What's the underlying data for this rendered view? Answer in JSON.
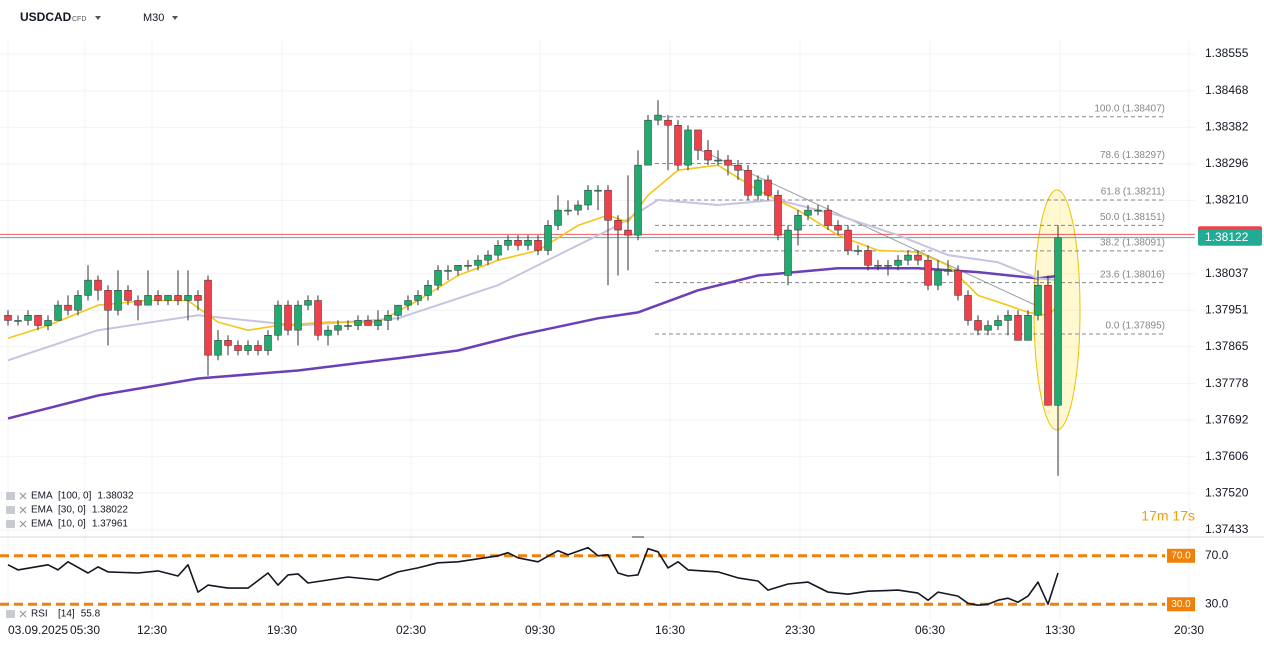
{
  "header": {
    "symbol": "USDCAD",
    "badge": "CFD",
    "timeframe": "M30"
  },
  "chart_data": [
    {
      "type": "candlestick",
      "up_color": "#22ab6e",
      "down_color": "#f0414b",
      "xlim": [
        -0.8,
        118.7
      ],
      "ylim": [
        1.37433,
        1.38555
      ],
      "yticks": [
        1.38555,
        1.38468,
        1.38382,
        1.38296,
        {
          "value": 1.3821,
          "label": "1.38210"
        },
        1.38037,
        1.37951,
        1.37865,
        1.37778,
        1.37692,
        1.37606,
        {
          "value": 1.3752,
          "label": "1.37520"
        },
        1.37433
      ],
      "grid": true,
      "open": [
        1.37939,
        1.37927,
        1.37927,
        1.37939,
        1.37915,
        1.37927,
        1.37963,
        1.37951,
        1.37986,
        1.38022,
        1.37998,
        1.37951,
        1.37998,
        1.37974,
        1.37963,
        1.37986,
        1.37974,
        1.37986,
        1.37974,
        1.37986,
        1.38022,
        1.37845,
        1.3788,
        1.37868,
        1.37856,
        1.37868,
        1.37856,
        1.37892,
        1.37963,
        1.37904,
        1.37963,
        1.37974,
        1.37892,
        1.37904,
        1.37915,
        1.37915,
        1.37927,
        1.37915,
        1.37927,
        1.37939,
        1.37963,
        1.37974,
        1.37986,
        1.3801,
        1.38045,
        1.38045,
        1.38057,
        1.38057,
        1.38069,
        1.38081,
        1.38104,
        1.38116,
        1.38104,
        1.38116,
        1.38092,
        1.38151,
        1.38187,
        1.38187,
        1.38199,
        1.38234,
        1.38234,
        1.38163,
        1.3814,
        1.38128,
        1.38293,
        1.38399,
        1.38399,
        1.38387,
        1.38293,
        1.38376,
        1.38328,
        1.38305,
        1.38305,
        1.38293,
        1.38281,
        1.38222,
        1.38258,
        1.38222,
        1.38033,
        1.3814,
        1.38175,
        1.38187,
        1.38187,
        1.38151,
        1.3814,
        1.38092,
        1.38092,
        1.38057,
        1.38057,
        1.38057,
        1.38069,
        1.38081,
        1.38069,
        1.3801,
        1.38045,
        1.38045,
        1.37986,
        1.37927,
        1.37904,
        1.37915,
        1.37927,
        1.37939,
        1.3788,
        1.37939,
        1.3801,
        1.37727
      ],
      "high": [
        1.37951,
        1.37939,
        1.37951,
        1.37939,
        1.37939,
        1.37974,
        1.37986,
        1.37998,
        1.38057,
        1.38033,
        1.3801,
        1.38045,
        1.3801,
        1.37986,
        1.38045,
        1.37998,
        1.37986,
        1.38045,
        1.38045,
        1.37998,
        1.38033,
        1.37904,
        1.37892,
        1.3788,
        1.3788,
        1.3788,
        1.37904,
        1.37974,
        1.37974,
        1.37974,
        1.37986,
        1.37986,
        1.37915,
        1.37927,
        1.37927,
        1.37939,
        1.37939,
        1.37951,
        1.37951,
        1.37963,
        1.37986,
        1.37998,
        1.38022,
        1.38057,
        1.38057,
        1.38057,
        1.38069,
        1.38081,
        1.38092,
        1.38116,
        1.38128,
        1.38128,
        1.38128,
        1.38128,
        1.38163,
        1.38222,
        1.3821,
        1.3821,
        1.38246,
        1.38246,
        1.38246,
        1.38175,
        1.38269,
        1.38328,
        1.38411,
        1.38446,
        1.38411,
        1.38399,
        1.38387,
        1.38376,
        1.38352,
        1.38328,
        1.38317,
        1.38305,
        1.38293,
        1.38269,
        1.38269,
        1.38234,
        1.38151,
        1.38187,
        1.38199,
        1.38199,
        1.38199,
        1.38163,
        1.38151,
        1.38104,
        1.38104,
        1.38069,
        1.38069,
        1.38081,
        1.38092,
        1.38092,
        1.38081,
        1.38069,
        1.38069,
        1.38057,
        1.37998,
        1.37939,
        1.37927,
        1.37939,
        1.37951,
        1.37951,
        1.37951,
        1.38045,
        1.38033,
        1.38151
      ],
      "low": [
        1.37915,
        1.37915,
        1.37915,
        1.37904,
        1.37904,
        1.37927,
        1.37939,
        1.37939,
        1.37974,
        1.37974,
        1.37868,
        1.37939,
        1.37963,
        1.37927,
        1.37963,
        1.37963,
        1.37963,
        1.37963,
        1.37927,
        1.37951,
        1.37797,
        1.37833,
        1.37845,
        1.37845,
        1.37845,
        1.37845,
        1.37845,
        1.3788,
        1.37892,
        1.37868,
        1.37951,
        1.3788,
        1.37868,
        1.37892,
        1.37904,
        1.37904,
        1.37915,
        1.37904,
        1.37904,
        1.37927,
        1.37951,
        1.37963,
        1.37974,
        1.37998,
        1.38022,
        1.38033,
        1.38045,
        1.38045,
        1.38057,
        1.38069,
        1.38092,
        1.38092,
        1.38092,
        1.38081,
        1.38081,
        1.3814,
        1.38175,
        1.38175,
        1.38187,
        1.38187,
        1.3801,
        1.38033,
        1.38045,
        1.38116,
        1.38293,
        1.38387,
        1.38281,
        1.38281,
        1.38281,
        1.38305,
        1.38293,
        1.38293,
        1.38269,
        1.38258,
        1.3821,
        1.3821,
        1.3821,
        1.38116,
        1.3801,
        1.38104,
        1.38163,
        1.38175,
        1.3814,
        1.38128,
        1.38081,
        1.38081,
        1.38045,
        1.38045,
        1.38033,
        1.38045,
        1.38057,
        1.38057,
        1.37998,
        1.37998,
        1.38033,
        1.37974,
        1.37915,
        1.37892,
        1.37892,
        1.37904,
        1.37892,
        1.3788,
        1.3788,
        1.37927,
        1.37727,
        1.37561
      ],
      "close": [
        1.37927,
        1.37927,
        1.37939,
        1.37915,
        1.37927,
        1.37963,
        1.37951,
        1.37986,
        1.38022,
        1.37998,
        1.37951,
        1.37998,
        1.37974,
        1.37963,
        1.37986,
        1.37974,
        1.37986,
        1.37974,
        1.37986,
        1.37974,
        1.37845,
        1.3788,
        1.37868,
        1.37856,
        1.37868,
        1.37856,
        1.37892,
        1.37963,
        1.37904,
        1.37963,
        1.37974,
        1.37892,
        1.37904,
        1.37915,
        1.37915,
        1.37927,
        1.37915,
        1.37927,
        1.37939,
        1.37963,
        1.37974,
        1.37986,
        1.3801,
        1.38045,
        1.38045,
        1.38057,
        1.38057,
        1.38069,
        1.38081,
        1.38104,
        1.38116,
        1.38104,
        1.38116,
        1.38092,
        1.38151,
        1.38187,
        1.38187,
        1.38199,
        1.38234,
        1.38234,
        1.38163,
        1.3814,
        1.38128,
        1.38293,
        1.38399,
        1.38411,
        1.38387,
        1.38293,
        1.38376,
        1.38328,
        1.38305,
        1.38305,
        1.38293,
        1.38281,
        1.38222,
        1.38258,
        1.38222,
        1.38128,
        1.3814,
        1.38175,
        1.38187,
        1.38187,
        1.38151,
        1.3814,
        1.38092,
        1.38092,
        1.38057,
        1.38057,
        1.38057,
        1.38069,
        1.38081,
        1.38069,
        1.3801,
        1.38045,
        1.38045,
        1.37986,
        1.37927,
        1.37904,
        1.37915,
        1.37927,
        1.37939,
        1.3788,
        1.37939,
        1.3801,
        1.37727,
        1.38122
      ],
      "series": [
        {
          "name": "EMA",
          "params": "[100, 0]",
          "color": "#6b3fb8",
          "x": [
            0,
            9,
            19,
            29,
            39,
            45,
            51,
            59,
            63,
            69,
            75,
            83,
            91,
            97,
            103,
            105
          ],
          "values": [
            1.37696,
            1.3775,
            1.3779,
            1.37809,
            1.37838,
            1.37856,
            1.37892,
            1.37932,
            1.37946,
            1.37998,
            1.38033,
            1.3805,
            1.3805,
            1.38041,
            1.38026,
            1.38032
          ]
        },
        {
          "name": "EMA",
          "params": "[30, 0]",
          "color": "#c9c3e2",
          "x": [
            0,
            9,
            19,
            29,
            39,
            49,
            55,
            61,
            65,
            71,
            77,
            83,
            89,
            94,
            99,
            103,
            105
          ],
          "values": [
            1.37833,
            1.37904,
            1.37939,
            1.37915,
            1.37932,
            1.3801,
            1.38081,
            1.38151,
            1.38211,
            1.38199,
            1.38211,
            1.38175,
            1.38128,
            1.38081,
            1.38064,
            1.38026,
            1.38022
          ]
        },
        {
          "name": "EMA",
          "params": "[10, 0]",
          "color": "#f5c518",
          "x": [
            0,
            4,
            9,
            14,
            18,
            21,
            24,
            27,
            32,
            37,
            41,
            45,
            49,
            53,
            57,
            60,
            62,
            64,
            67,
            71,
            75,
            79,
            83,
            87,
            91,
            94,
            97,
            100,
            102,
            104,
            105
          ],
          "values": [
            1.37885,
            1.37915,
            1.37963,
            1.37974,
            1.37974,
            1.37923,
            1.37904,
            1.37915,
            1.37923,
            1.37923,
            1.37974,
            1.38033,
            1.38069,
            1.38092,
            1.38151,
            1.38175,
            1.38159,
            1.38222,
            1.38281,
            1.38293,
            1.38234,
            1.38187,
            1.38128,
            1.38092,
            1.38088,
            1.38057,
            1.37986,
            1.37963,
            1.37946,
            1.37939,
            1.37961
          ]
        }
      ],
      "fib_levels": [
        {
          "value": 1.38407,
          "label": "100.0 (1.38407)"
        },
        {
          "value": 1.38297,
          "label": "78.6 (1.38297)"
        },
        {
          "value": 1.38211,
          "label": "61.8 (1.38211)"
        },
        {
          "value": 1.38151,
          "label": "50.0 (1.38151)"
        },
        {
          "value": 1.38091,
          "label": "38.2 (1.38091)"
        },
        {
          "value": 1.38016,
          "label": "23.6 (1.38016)"
        },
        {
          "value": 1.37895,
          "label": "0.0 (1.37895)"
        }
      ],
      "last_price": 1.38122,
      "last_price_color": "#22ab94",
      "bid_line": 1.3813,
      "bid_color": "#f0414b",
      "countdown": "17m 17s"
    },
    {
      "type": "line",
      "xlim": [
        -0.8,
        118.7
      ],
      "ylim": [
        17,
        83
      ],
      "xticks": [
        {
          "value": 0,
          "label": "03.09.2025"
        },
        {
          "value": 7.7,
          "label": "05:30"
        },
        {
          "value": 14.4,
          "label": "12:30"
        },
        {
          "value": 27.4,
          "label": "19:30"
        },
        {
          "value": 40.3,
          "label": "02:30"
        },
        {
          "value": 53.2,
          "label": "09:30"
        },
        {
          "value": 66.2,
          "label": "16:30"
        },
        {
          "value": 79.2,
          "label": "23:30"
        },
        {
          "value": 92.2,
          "label": "06:30"
        },
        {
          "value": 105.2,
          "label": "13:30"
        },
        {
          "value": 118.1,
          "label": "20:30"
        }
      ],
      "levels": [
        {
          "value": 70,
          "label": "70.0"
        },
        {
          "value": 30,
          "label": "30.0"
        }
      ],
      "level_color": "#f0800a",
      "series": [
        {
          "name": "RSI",
          "params": "[14]",
          "color": "#131722",
          "x": [
            0,
            1,
            4,
            5,
            6,
            8,
            9,
            10,
            13,
            15,
            17,
            18,
            19,
            20,
            22,
            24,
            26,
            27,
            28,
            29,
            30,
            32,
            34,
            37,
            39,
            41,
            43,
            45,
            49,
            50,
            51,
            53,
            55,
            56,
            58,
            59,
            60,
            61,
            62,
            63,
            64,
            65,
            66,
            67,
            68,
            71,
            73,
            75,
            76,
            78,
            80,
            82,
            84,
            86,
            89,
            91,
            92,
            93,
            95,
            96,
            97,
            98,
            99,
            100,
            101,
            102,
            103,
            104,
            105
          ],
          "values": [
            62.5,
            58.3,
            62.5,
            58.3,
            65,
            55.8,
            60.8,
            56.7,
            55.8,
            57.5,
            53.3,
            62.5,
            40,
            45.8,
            43.3,
            43.3,
            55.8,
            45.8,
            54.2,
            55,
            47.5,
            50,
            52.5,
            50,
            56.7,
            60,
            64.2,
            65,
            70,
            72.5,
            68.3,
            65,
            74.2,
            70.8,
            76.7,
            70,
            70.8,
            55.8,
            53.3,
            54.2,
            75.8,
            73.3,
            60,
            65,
            58.3,
            56.7,
            51.7,
            49.2,
            41.7,
            46.7,
            48.3,
            40,
            38.3,
            40.8,
            41.7,
            39.2,
            33.3,
            40,
            36.7,
            30.8,
            29.2,
            30,
            33.3,
            35,
            31.7,
            36.7,
            48.3,
            30,
            55.8
          ]
        }
      ]
    }
  ]
}
